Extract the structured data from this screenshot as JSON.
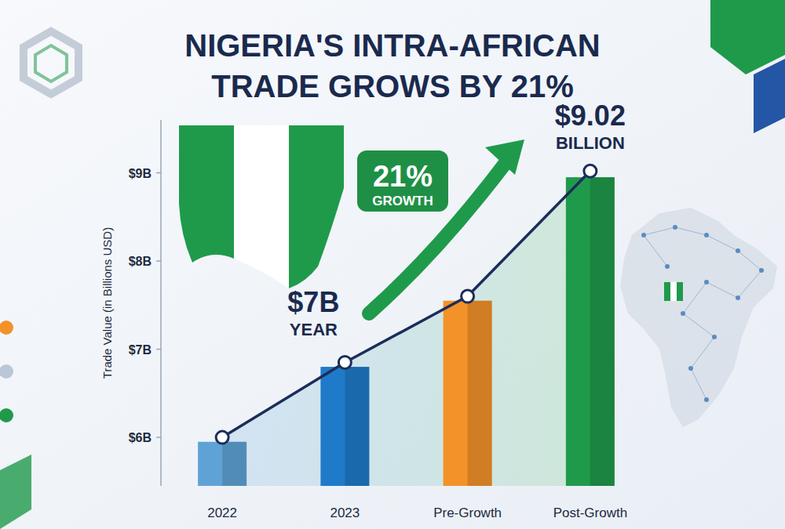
{
  "chart_data": {
    "type": "bar",
    "title": [
      "NIGERIA'S INTRA-AFRICAN",
      "TRADE GROWS BY 21%"
    ],
    "y_label": "Trade Value (in Billions USD)",
    "categories": [
      "2022",
      "2023",
      "Pre-Growth",
      "Post-Growth"
    ],
    "series": [
      {
        "type": "bar",
        "colors": [
          "#5fa3d6",
          "#1f7bc9",
          "#f39229",
          "#1f9a4b"
        ],
        "values": [
          5.95,
          6.8,
          7.55,
          8.95
        ]
      },
      {
        "type": "line",
        "color": "#1c2d5a",
        "marker": "circle",
        "values": [
          6.0,
          6.85,
          7.6,
          9.02
        ]
      }
    ],
    "annotations": [
      "$7B",
      "YEAR",
      "21%",
      "GROWTH",
      "$9.02",
      "BILLION"
    ],
    "ylim": [
      5.45,
      9.6
    ],
    "yticks": [
      {
        "value": 6,
        "label": "$6B"
      },
      {
        "value": 7,
        "label": "$7B"
      },
      {
        "value": 8,
        "label": "$8B"
      },
      {
        "value": 9,
        "label": "$9B"
      }
    ],
    "grid": false
  }
}
